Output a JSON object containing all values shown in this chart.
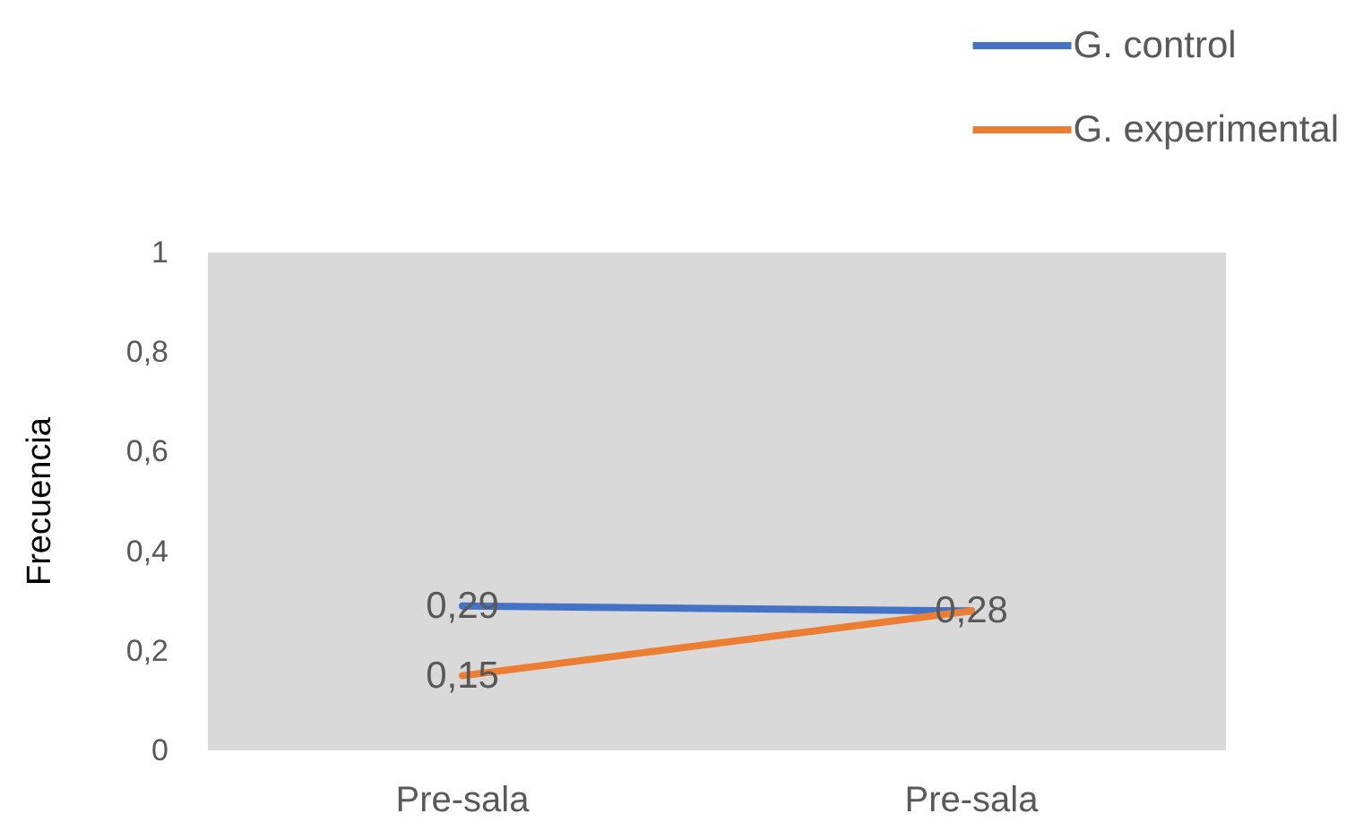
{
  "chart_data": {
    "type": "line",
    "categories": [
      "Pre-sala",
      "Pre-sala"
    ],
    "ylabel": "Frecuencia",
    "series": [
      {
        "name": "G. control",
        "color": "#4472c4",
        "values": [
          0.29,
          0.28
        ],
        "value_labels": [
          "0,29",
          null
        ]
      },
      {
        "name": "G. experimental",
        "color": "#ed7d31",
        "values": [
          0.15,
          0.28
        ],
        "value_labels": [
          "0,15",
          "0,28"
        ]
      }
    ],
    "ylim": [
      0,
      1
    ],
    "yticks": [
      0,
      {
        "value": 0.2,
        "label": "0,2"
      },
      {
        "value": 0.4,
        "label": "0,4"
      },
      {
        "value": 0.6,
        "label": "0,6"
      },
      {
        "value": 0.8,
        "label": "0,8"
      },
      1
    ],
    "grid": false,
    "legend": "top right",
    "marker": "none",
    "line_style": "solid"
  }
}
